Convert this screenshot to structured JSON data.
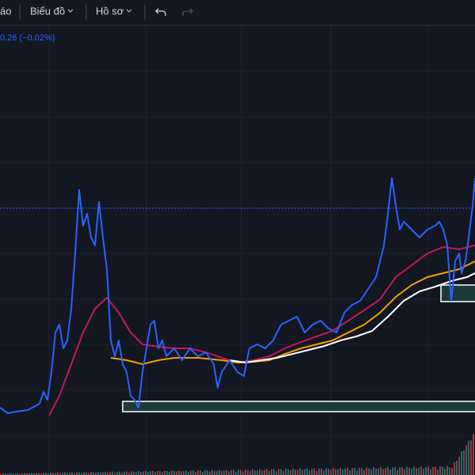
{
  "toolbar": {
    "items": [
      "áo",
      "Biểu đồ",
      "Hồ sơ"
    ]
  },
  "legend": {
    "change": "0.26 (−0.02%)"
  }
}
